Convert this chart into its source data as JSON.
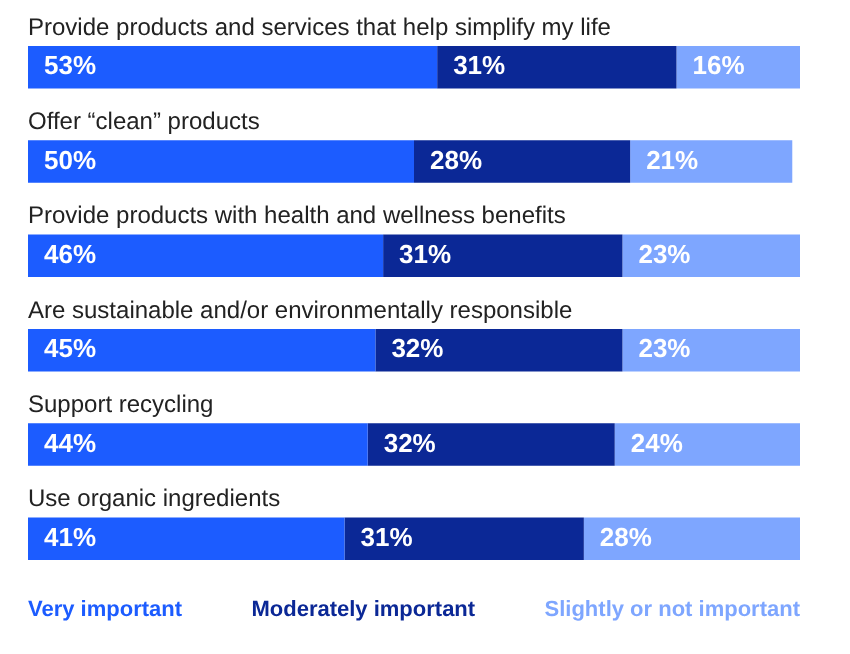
{
  "chart_data": {
    "type": "bar",
    "orientation": "horizontal",
    "stacked": true,
    "legend": "bottom",
    "xlim": [
      0,
      100
    ],
    "categories": [
      "Provide products and services that help simplify my life",
      "Offer “clean” products",
      "Provide products with health and wellness benefits",
      "Are sustainable and/or environmentally responsible",
      "Support recycling",
      "Use organic ingredients"
    ],
    "series": [
      {
        "name": "Very important",
        "color": "#1c5cff",
        "values": [
          53,
          50,
          46,
          45,
          44,
          41
        ],
        "value_labels": [
          "53%",
          "50%",
          "46%",
          "45%",
          "44%",
          "41%"
        ]
      },
      {
        "name": "Moderately important",
        "color": "#0b2896",
        "values": [
          31,
          28,
          31,
          32,
          32,
          31
        ],
        "value_labels": [
          "31%",
          "28%",
          "31%",
          "32%",
          "32%",
          "31%"
        ]
      },
      {
        "name": "Slightly or not important",
        "color": "#7ea6ff",
        "values": [
          16,
          21,
          23,
          23,
          24,
          28
        ],
        "value_labels": [
          "16%",
          "21%",
          "23%",
          "23%",
          "24%",
          "28%"
        ]
      }
    ]
  }
}
